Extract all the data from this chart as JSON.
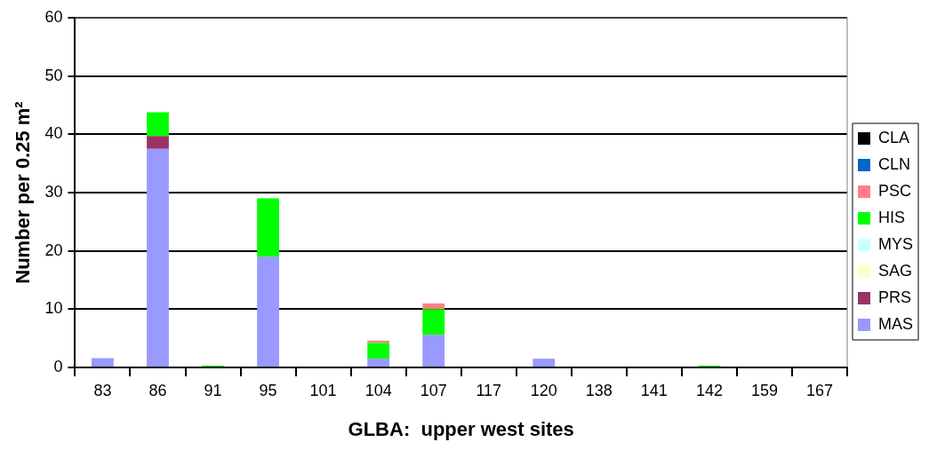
{
  "chart_data": {
    "type": "bar",
    "stacked": true,
    "xlabel": "GLBA:  upper west sites",
    "ylabel": "Number per 0.25 m²",
    "categories": [
      "83",
      "86",
      "91",
      "95",
      "101",
      "104",
      "107",
      "117",
      "120",
      "138",
      "141",
      "142",
      "159",
      "167"
    ],
    "ylim": [
      0,
      60
    ],
    "yticks": [
      0,
      10,
      20,
      30,
      40,
      50,
      60
    ],
    "grid": "y",
    "legend": "right",
    "series": [
      {
        "name": "MAS",
        "color": "#9999ff",
        "values": [
          1.6,
          37.5,
          0,
          19,
          0,
          1.5,
          5.6,
          0,
          1.5,
          0,
          0,
          0,
          0,
          0
        ]
      },
      {
        "name": "PRS",
        "color": "#993366",
        "values": [
          0,
          2.2,
          0,
          0,
          0,
          0,
          0,
          0,
          0,
          0,
          0,
          0,
          0,
          0
        ]
      },
      {
        "name": "SAG",
        "color": "#ffffcc",
        "values": [
          0,
          0,
          0,
          0,
          0,
          0,
          0,
          0,
          0,
          0,
          0,
          0,
          0,
          0
        ]
      },
      {
        "name": "MYS",
        "color": "#ccffff",
        "values": [
          0,
          0,
          0,
          0,
          0,
          0,
          0,
          0,
          0,
          0,
          0,
          0,
          0,
          0
        ]
      },
      {
        "name": "HIS",
        "color": "#00ff00",
        "values": [
          0,
          4.1,
          0.3,
          10,
          0,
          2.7,
          4.4,
          0,
          0,
          0,
          0,
          0.3,
          0,
          0
        ]
      },
      {
        "name": "PSC",
        "color": "#ff8080",
        "values": [
          0,
          0,
          0,
          0,
          0,
          0.4,
          1,
          0,
          0,
          0,
          0,
          0,
          0,
          0
        ]
      },
      {
        "name": "CLN",
        "color": "#0066cc",
        "values": [
          0,
          0,
          0,
          0,
          0,
          0,
          0,
          0,
          0,
          0,
          0,
          0,
          0,
          0
        ]
      },
      {
        "name": "CLA",
        "color": "#000000",
        "values": [
          0,
          0,
          0,
          0,
          0,
          0,
          0,
          0,
          0,
          0,
          0,
          0,
          0,
          0
        ]
      }
    ]
  }
}
